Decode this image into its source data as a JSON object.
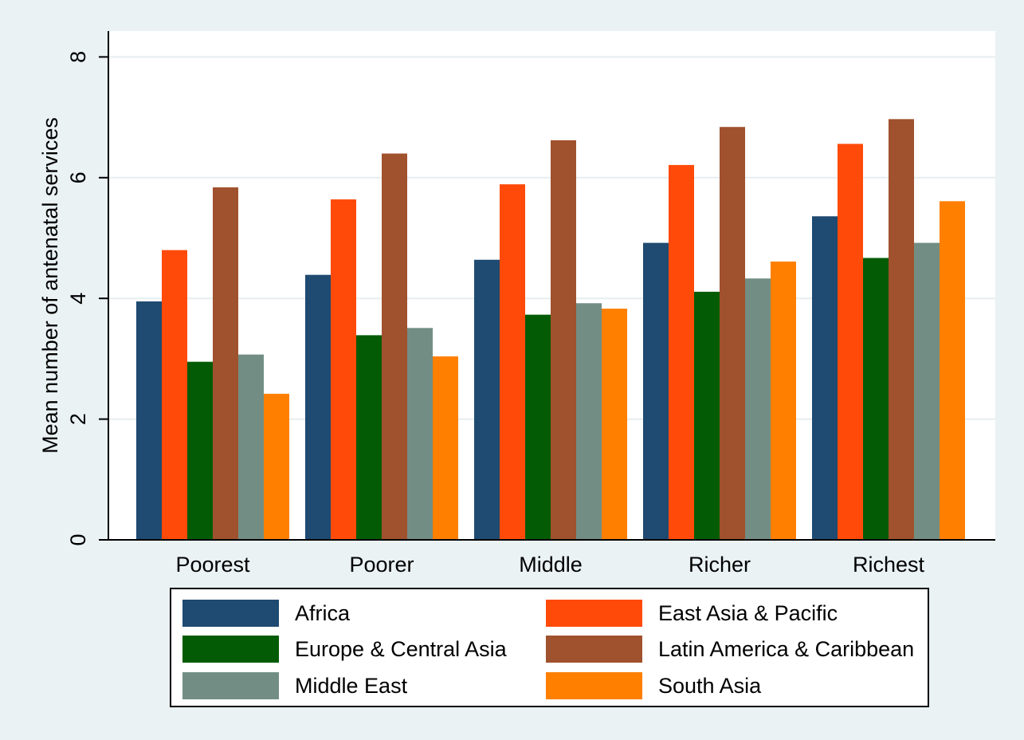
{
  "chart_data": {
    "type": "bar",
    "title": "",
    "xlabel": "",
    "ylabel": "Mean number of antenatal services",
    "categories": [
      "Poorest",
      "Poorer",
      "Middle",
      "Richer",
      "Richest"
    ],
    "yticks": [
      "0",
      "2",
      "4",
      "6",
      "8"
    ],
    "ylim": [
      0,
      8.5
    ],
    "grid": "horizontal",
    "legend_position": "bottom",
    "series": [
      {
        "name": "Africa",
        "color": "#1f4a71",
        "values": [
          3.95,
          4.39,
          4.64,
          4.92,
          5.36
        ]
      },
      {
        "name": "East Asia & Pacific",
        "color": "#ff4a0a",
        "values": [
          4.8,
          5.64,
          5.89,
          6.21,
          6.56
        ]
      },
      {
        "name": "Europe & Central Asia",
        "color": "#035c05",
        "values": [
          2.95,
          3.39,
          3.73,
          4.11,
          4.67
        ]
      },
      {
        "name": "Latin America & Caribbean",
        "color": "#a0512d",
        "values": [
          5.84,
          6.4,
          6.62,
          6.84,
          6.97
        ]
      },
      {
        "name": "Middle East",
        "color": "#728e84",
        "values": [
          3.07,
          3.51,
          3.92,
          4.33,
          4.92
        ]
      },
      {
        "name": "South Asia",
        "color": "#ff7f00",
        "values": [
          2.42,
          3.04,
          3.83,
          4.61,
          5.61
        ]
      }
    ]
  }
}
